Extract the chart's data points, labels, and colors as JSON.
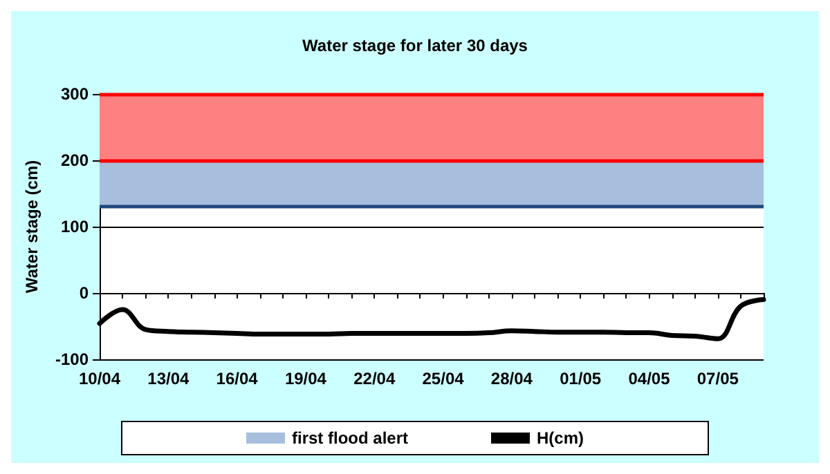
{
  "chart_data": {
    "type": "line",
    "title": "Water stage for later 30 days",
    "ylabel": "Water stage (cm)",
    "x": [
      "--04-10",
      "--04-11",
      "--04-12",
      "--04-13",
      "--04-14",
      "--04-15",
      "--04-16",
      "--04-17",
      "--04-18",
      "--04-19",
      "--04-20",
      "--04-21",
      "--04-22",
      "--04-23",
      "--04-24",
      "--04-25",
      "--04-26",
      "--04-27",
      "--04-28",
      "--04-29",
      "--04-30",
      "--05-01",
      "--05-02",
      "--05-03",
      "--05-04",
      "--05-05",
      "--05-06",
      "--05-07",
      "--05-08",
      "--05-09"
    ],
    "series": [
      {
        "name": "H(cm)",
        "color": "#000000",
        "values": [
          -46,
          -25,
          -55,
          -58,
          -59,
          -60,
          -61,
          -62,
          -62,
          -62,
          -62,
          -61,
          -61,
          -61,
          -61,
          -61,
          -61,
          -60,
          -57,
          -58,
          -59,
          -59,
          -59,
          -60,
          -60,
          -64,
          -65,
          -69,
          -20,
          -10
        ]
      }
    ],
    "xlim": [
      "--04-10",
      "--05-09"
    ],
    "xticks": [
      {
        "value": "--04-10",
        "label": "10/04"
      },
      {
        "value": "--04-11",
        "label": null
      },
      {
        "value": "--04-12",
        "label": null
      },
      {
        "value": "--04-13",
        "label": "13/04"
      },
      {
        "value": "--04-14",
        "label": null
      },
      {
        "value": "--04-15",
        "label": null
      },
      {
        "value": "--04-16",
        "label": "16/04"
      },
      {
        "value": "--04-17",
        "label": null
      },
      {
        "value": "--04-18",
        "label": null
      },
      {
        "value": "--04-19",
        "label": "19/04"
      },
      {
        "value": "--04-20",
        "label": null
      },
      {
        "value": "--04-21",
        "label": null
      },
      {
        "value": "--04-22",
        "label": "22/04"
      },
      {
        "value": "--04-23",
        "label": null
      },
      {
        "value": "--04-24",
        "label": null
      },
      {
        "value": "--04-25",
        "label": "25/04"
      },
      {
        "value": "--04-26",
        "label": null
      },
      {
        "value": "--04-27",
        "label": null
      },
      {
        "value": "--04-28",
        "label": "28/04"
      },
      {
        "value": "--04-29",
        "label": null
      },
      {
        "value": "--04-30",
        "label": null
      },
      {
        "value": "--05-01",
        "label": "01/05"
      },
      {
        "value": "--05-02",
        "label": null
      },
      {
        "value": "--05-03",
        "label": null
      },
      {
        "value": "--05-04",
        "label": "04/05"
      },
      {
        "value": "--05-05",
        "label": null
      },
      {
        "value": "--05-06",
        "label": null
      },
      {
        "value": "--05-07",
        "label": "07/05"
      },
      {
        "value": "--05-08",
        "label": null
      },
      {
        "value": "--05-09",
        "label": null
      }
    ],
    "ylim": [
      -100,
      300
    ],
    "yticks": [
      -100,
      0,
      100,
      200,
      300
    ],
    "bands": [
      {
        "axis": "y",
        "from": 200,
        "to": 300,
        "color": "#ff8080"
      },
      {
        "axis": "y",
        "from": 130,
        "to": 200,
        "label": "first flood alert",
        "color": "#a7bfdd"
      }
    ],
    "ref_lines": [
      {
        "axis": "y",
        "value": 300,
        "color": "#ff0000"
      },
      {
        "axis": "y",
        "value": 200,
        "color": "#ff0000"
      },
      {
        "axis": "y",
        "value": 130,
        "color": "#1f497d"
      }
    ],
    "grid": "y",
    "legend": "bottom",
    "marker": "none",
    "line_style": "solid"
  }
}
